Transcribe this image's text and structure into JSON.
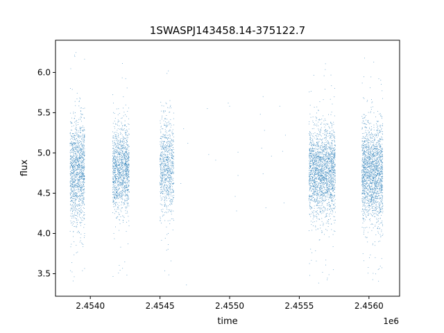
{
  "chart_data": {
    "type": "scatter",
    "title": "1SWASPJ143458.14-375122.7",
    "xlabel": "time",
    "ylabel": "flux",
    "x_offset_label": "1e6",
    "xlim": [
      2453750,
      2456220
    ],
    "ylim": [
      3.22,
      6.4
    ],
    "xticks": [
      2454000,
      2454500,
      2455000,
      2455500,
      2456000
    ],
    "xtick_labels": [
      "2.4540",
      "2.4545",
      "2.4550",
      "2.4555",
      "2.4560"
    ],
    "yticks": [
      3.5,
      4.0,
      4.5,
      5.0,
      5.5,
      6.0
    ],
    "ytick_labels": [
      "3.5",
      "4.0",
      "4.5",
      "5.0",
      "5.5",
      "6.0"
    ],
    "grid": false,
    "marker_color": "#1f77b4",
    "clusters": [
      {
        "x_start": 2453855,
        "x_end": 2453960,
        "flux_mean": 4.78,
        "flux_sd": 0.33,
        "flux_min": 3.35,
        "flux_max": 6.25,
        "count": 1300
      },
      {
        "x_start": 2454160,
        "x_end": 2454280,
        "flux_mean": 4.8,
        "flux_sd": 0.26,
        "flux_min": 3.45,
        "flux_max": 6.15,
        "count": 1300
      },
      {
        "x_start": 2454500,
        "x_end": 2454600,
        "flux_mean": 4.82,
        "flux_sd": 0.3,
        "flux_min": 3.35,
        "flux_max": 6.18,
        "count": 850
      },
      {
        "x_start": 2455570,
        "x_end": 2455760,
        "flux_mean": 4.77,
        "flux_sd": 0.28,
        "flux_min": 3.35,
        "flux_max": 6.2,
        "count": 2100
      },
      {
        "x_start": 2455950,
        "x_end": 2456100,
        "flux_mean": 4.75,
        "flux_sd": 0.31,
        "flux_min": 3.4,
        "flux_max": 6.2,
        "count": 1900
      }
    ],
    "sparse_points": [
      {
        "x": 2454690,
        "y": 3.36
      },
      {
        "x": 2454700,
        "y": 5.12
      },
      {
        "x": 2454840,
        "y": 5.55
      },
      {
        "x": 2454850,
        "y": 4.98
      },
      {
        "x": 2454900,
        "y": 4.91
      },
      {
        "x": 2454990,
        "y": 5.62
      },
      {
        "x": 2455000,
        "y": 5.58
      },
      {
        "x": 2455040,
        "y": 4.46
      },
      {
        "x": 2455050,
        "y": 4.28
      },
      {
        "x": 2455060,
        "y": 5.01
      },
      {
        "x": 2455060,
        "y": 4.72
      },
      {
        "x": 2455220,
        "y": 5.48
      },
      {
        "x": 2455230,
        "y": 5.06
      },
      {
        "x": 2455240,
        "y": 4.74
      },
      {
        "x": 2455250,
        "y": 5.28
      },
      {
        "x": 2455260,
        "y": 4.32
      },
      {
        "x": 2455300,
        "y": 4.96
      },
      {
        "x": 2455360,
        "y": 5.58
      },
      {
        "x": 2455380,
        "y": 5.02
      },
      {
        "x": 2455390,
        "y": 4.38
      },
      {
        "x": 2455400,
        "y": 5.22
      },
      {
        "x": 2454650,
        "y": 4.62
      },
      {
        "x": 2454670,
        "y": 5.3
      },
      {
        "x": 2455240,
        "y": 5.7
      }
    ]
  }
}
